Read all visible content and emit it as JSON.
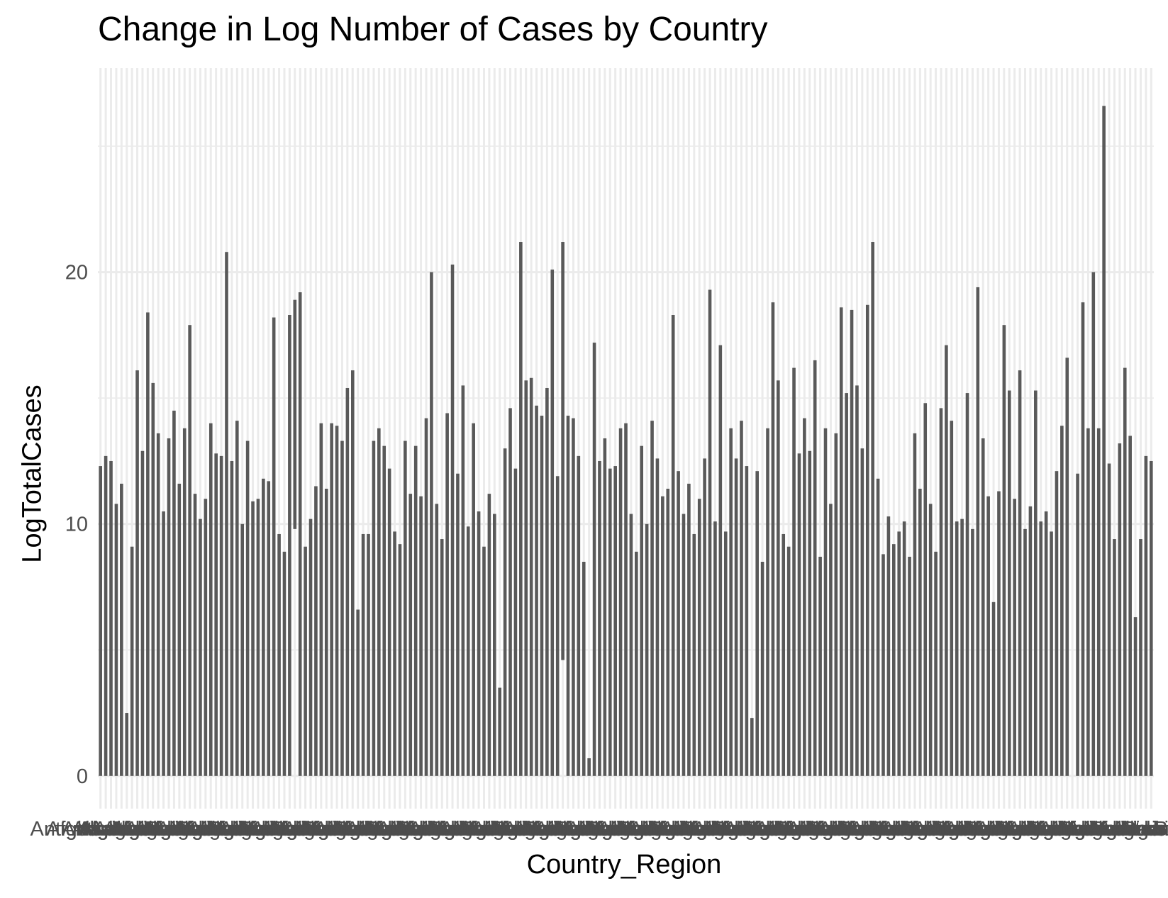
{
  "chart_data": {
    "type": "bar",
    "title": "Change in Log Number of Cases by Country",
    "xlabel": "Country_Region",
    "ylabel": "LogTotalCases",
    "ylim": [
      -1.3,
      28.1
    ],
    "yticks": [
      0,
      10,
      20
    ],
    "ytick_labels": [
      "0",
      "10",
      "20"
    ],
    "grid": true,
    "legend": "none",
    "bar_color": "#595959",
    "grid_color": "#ebebeb",
    "categories_note_visible": [
      "Afghanistan",
      "Albania",
      "Algeria",
      "Andorra",
      "Angola",
      "Antigua and Barbuda"
    ],
    "values": [
      12.3,
      12.7,
      12.5,
      10.8,
      11.6,
      2.5,
      9.1,
      16.1,
      12.9,
      18.4,
      15.6,
      13.6,
      10.5,
      13.4,
      14.5,
      11.6,
      13.8,
      17.9,
      11.2,
      10.2,
      11.0,
      14.0,
      12.8,
      12.7,
      20.8,
      12.5,
      14.1,
      10.0,
      13.3,
      10.9,
      11.0,
      11.8,
      11.7,
      18.2,
      9.6,
      8.9,
      18.3,
      18.9,
      19.2,
      9.1,
      10.2,
      11.5,
      14.0,
      11.4,
      14.0,
      13.9,
      13.3,
      15.4,
      16.1,
      6.6,
      9.6,
      9.6,
      13.3,
      13.8,
      13.1,
      12.2,
      9.7,
      9.2,
      13.3,
      11.2,
      13.1,
      11.1,
      14.2,
      20.0,
      10.8,
      9.4,
      14.4,
      20.3,
      12.0,
      15.5,
      9.9,
      14.0,
      10.5,
      9.1,
      11.2,
      10.4,
      3.5,
      13.0,
      14.6,
      12.2,
      21.2,
      15.7,
      15.8,
      14.7,
      14.3,
      15.4,
      20.1,
      11.9,
      21.2,
      14.3,
      14.2,
      12.7,
      8.5,
      0.7,
      17.2,
      12.5,
      13.4,
      12.2,
      12.3,
      13.8,
      14.0,
      10.4,
      8.9,
      13.1,
      10.0,
      14.1,
      12.6,
      11.1,
      11.4,
      18.3,
      12.1,
      10.4,
      11.6,
      9.6,
      11.0,
      12.6,
      19.3,
      10.1,
      17.1,
      9.7,
      13.8,
      12.6,
      14.1,
      12.3,
      2.3,
      12.1,
      8.5,
      13.8,
      18.8,
      15.7,
      9.6,
      9.1,
      16.2,
      12.8,
      14.2,
      12.9,
      16.5,
      8.7,
      13.8,
      10.8,
      13.6,
      18.6,
      15.2,
      18.5,
      15.5,
      13.0,
      18.7,
      21.2,
      11.8,
      8.8,
      10.3,
      9.2,
      9.7,
      10.1,
      8.7,
      13.6,
      11.4,
      14.8,
      10.8,
      8.9,
      14.6,
      17.1,
      14.1,
      10.1,
      10.2,
      15.2,
      9.8,
      19.4,
      13.4,
      11.1,
      6.9,
      11.3,
      17.9,
      15.3,
      11.0,
      16.1,
      9.8,
      10.7,
      15.3,
      10.1,
      10.5,
      9.7,
      12.1,
      13.9,
      16.6,
      8.0,
      12.0,
      18.8,
      13.8,
      20.0,
      13.8,
      26.6,
      12.4,
      9.4,
      13.2,
      16.2,
      13.5,
      6.3,
      9.4,
      12.7,
      12.5
    ],
    "min_values": [
      0,
      0,
      0,
      0,
      0,
      0,
      0,
      0,
      0,
      0,
      0,
      0,
      0,
      0,
      0,
      0,
      0,
      0,
      0,
      0,
      0,
      0,
      0,
      0,
      0,
      0,
      0,
      0,
      0,
      0,
      0,
      0,
      0,
      0,
      0,
      0,
      0,
      9.8,
      0,
      0,
      0,
      0,
      0,
      0,
      0,
      0,
      0,
      0,
      0,
      0,
      0,
      0,
      0,
      0,
      0,
      0,
      0,
      0,
      0,
      0,
      0,
      0,
      0,
      0,
      0,
      0,
      0,
      0,
      0,
      0,
      0,
      0,
      0,
      0,
      0,
      0,
      0,
      0,
      0,
      0,
      0,
      0,
      0,
      0,
      0,
      0,
      0,
      0,
      4.6,
      0,
      0,
      0,
      0,
      0,
      0,
      0,
      0,
      0,
      0,
      0,
      0,
      0,
      0,
      0,
      0,
      0,
      0,
      0,
      0,
      0,
      0,
      0,
      0,
      0,
      0,
      0,
      0,
      0,
      0,
      0,
      0,
      0,
      0,
      0,
      0,
      0,
      0,
      0,
      0,
      0,
      0,
      0,
      0,
      0,
      0,
      0,
      0,
      0,
      0,
      0,
      0,
      0,
      0,
      0,
      0,
      0,
      0,
      0,
      0,
      0,
      0,
      0,
      0,
      0,
      0,
      0,
      0,
      0,
      0,
      0,
      0,
      0,
      0,
      0,
      0,
      0,
      0,
      0,
      0,
      0,
      0,
      0,
      0,
      0,
      0,
      0,
      0,
      0,
      0,
      0,
      0,
      0,
      0,
      0,
      0,
      8.1,
      0,
      0,
      0,
      0,
      0,
      0,
      0,
      0
    ]
  }
}
